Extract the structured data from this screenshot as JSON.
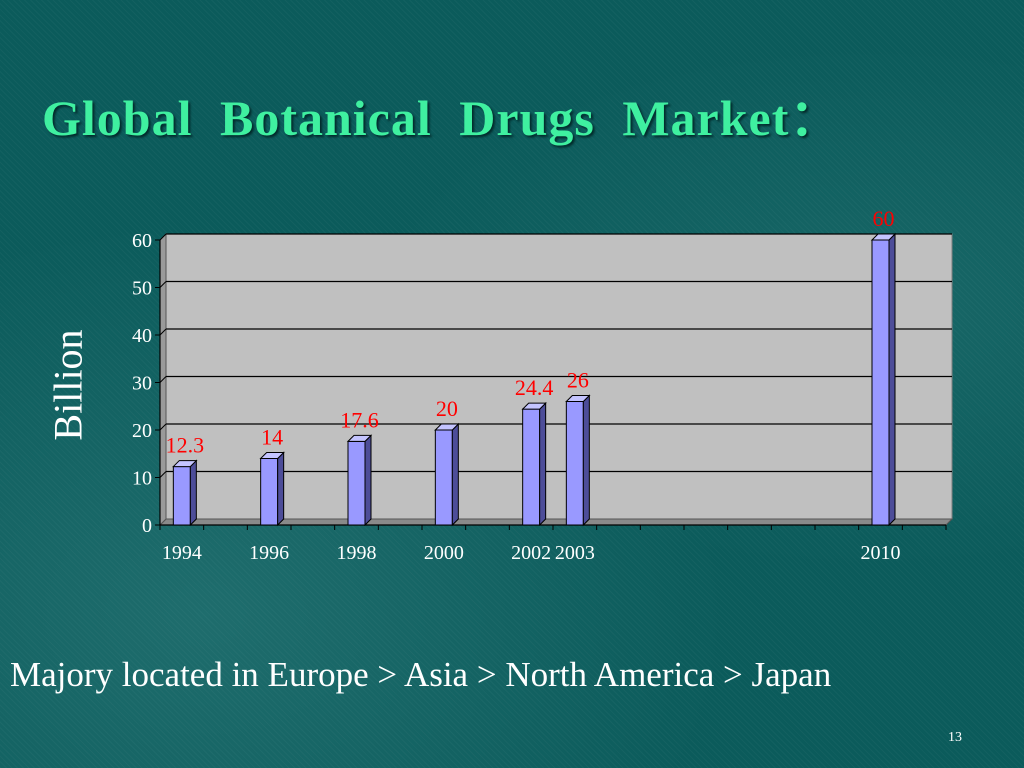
{
  "slide": {
    "title": "Global  Botanical  Drugs  Market：",
    "caption": "Majory located in Europe > Asia > North America > Japan",
    "page_number": "13"
  },
  "colors": {
    "title": "#3ff0a0",
    "bar_fill": "#9999ff",
    "bar_side": "#4d4d99",
    "bar_top": "#c4c4ff",
    "plot_background": "#c0c0c0",
    "data_label": "#ff0000",
    "text": "#ffffff"
  },
  "chart_data": {
    "type": "bar",
    "ylabel": "Billion",
    "ylim": [
      0,
      60
    ],
    "yticks": [
      0,
      10,
      20,
      30,
      40,
      50,
      60
    ],
    "grid": true,
    "x_range": [
      1994,
      2011
    ],
    "points": [
      {
        "x": 1994,
        "label": "1994",
        "value": 12.3
      },
      {
        "x": 1996,
        "label": "1996",
        "value": 14
      },
      {
        "x": 1998,
        "label": "1998",
        "value": 17.6
      },
      {
        "x": 2000,
        "label": "2000",
        "value": 20
      },
      {
        "x": 2002,
        "label": "2002",
        "value": 24.4
      },
      {
        "x": 2003,
        "label": "2003",
        "value": 26
      },
      {
        "x": 2010,
        "label": "2010",
        "value": 60
      }
    ]
  }
}
